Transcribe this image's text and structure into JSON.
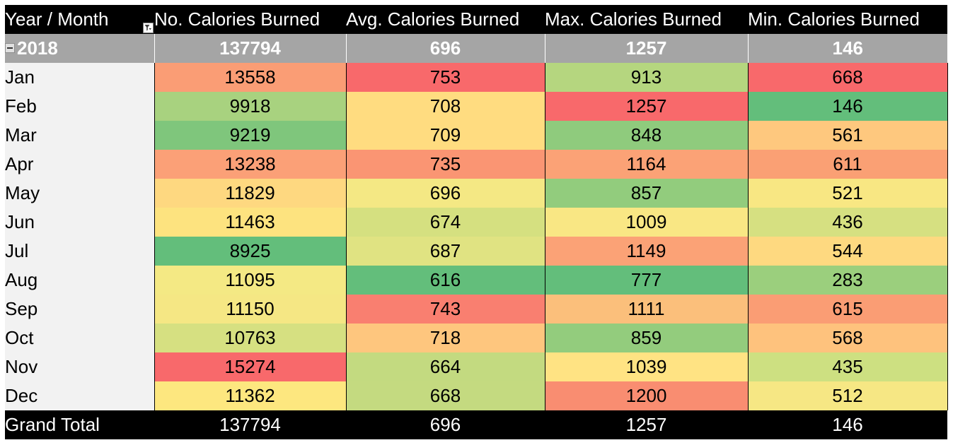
{
  "headers": [
    "Year / Month",
    "No. Calories Burned",
    "Avg. Calories Burned",
    "Max. Calories Burned",
    "Min. Calories Burned"
  ],
  "year_row": {
    "label": "2018",
    "values": [
      "137794",
      "696",
      "1257",
      "146"
    ]
  },
  "months": [
    {
      "label": "Jan",
      "values": [
        "13558",
        "753",
        "913",
        "668"
      ],
      "colors": [
        "#fa9d75",
        "#f8696b",
        "#b5d67f",
        "#f8696b"
      ]
    },
    {
      "label": "Feb",
      "values": [
        "9918",
        "708",
        "1257",
        "146"
      ],
      "colors": [
        "#a8d27f",
        "#ffdc80",
        "#f8696b",
        "#63be7b"
      ]
    },
    {
      "label": "Mar",
      "values": [
        "9219",
        "709",
        "848",
        "561"
      ],
      "colors": [
        "#7fc67c",
        "#ffdc80",
        "#8fcb7d",
        "#fec87e"
      ]
    },
    {
      "label": "Apr",
      "values": [
        "13238",
        "735",
        "1164",
        "611"
      ],
      "colors": [
        "#fba077",
        "#fa9573",
        "#fba276",
        "#faa074"
      ]
    },
    {
      "label": "May",
      "values": [
        "11829",
        "696",
        "857",
        "521"
      ],
      "colors": [
        "#fed880",
        "#f4e884",
        "#92cc7d",
        "#f8e783"
      ]
    },
    {
      "label": "Jun",
      "values": [
        "11463",
        "674",
        "1009",
        "436"
      ],
      "colors": [
        "#fde37f",
        "#d5e080",
        "#f9e784",
        "#d6e081"
      ]
    },
    {
      "label": "Jul",
      "values": [
        "8925",
        "687",
        "1149",
        "544"
      ],
      "colors": [
        "#63be7b",
        "#e0e382",
        "#fba276",
        "#fed980"
      ]
    },
    {
      "label": "Aug",
      "values": [
        "11095",
        "616",
        "777",
        "283"
      ],
      "colors": [
        "#f4e984",
        "#63be7b",
        "#63be7b",
        "#9bcf7d"
      ]
    },
    {
      "label": "Sep",
      "values": [
        "11150",
        "743",
        "1111",
        "615"
      ],
      "colors": [
        "#f5e784",
        "#f97f70",
        "#fbbf7b",
        "#fa9d74"
      ]
    },
    {
      "label": "Oct",
      "values": [
        "10763",
        "718",
        "859",
        "568"
      ],
      "colors": [
        "#d6e081",
        "#fec67e",
        "#93cc7d",
        "#fec27d"
      ]
    },
    {
      "label": "Nov",
      "values": [
        "15274",
        "664",
        "1039",
        "435"
      ],
      "colors": [
        "#f8696b",
        "#c3da80",
        "#ffe383",
        "#cde081"
      ]
    },
    {
      "label": "Dec",
      "values": [
        "11362",
        "668",
        "1200",
        "512"
      ],
      "colors": [
        "#fde77f",
        "#c4da80",
        "#f98d71",
        "#f6e784"
      ]
    }
  ],
  "grand_total": {
    "label": "Grand Total",
    "values": [
      "137794",
      "696",
      "1257",
      "146"
    ]
  }
}
